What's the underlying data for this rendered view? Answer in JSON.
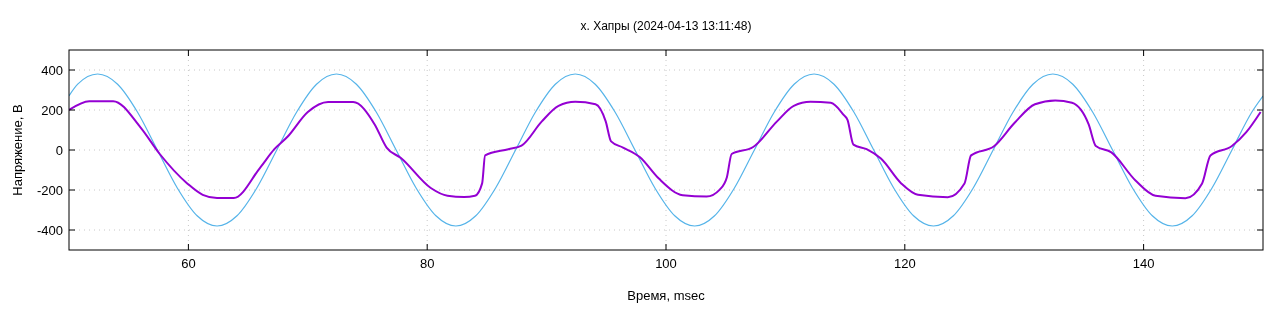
{
  "chart_data": {
    "type": "line",
    "title": "х. Хапры (2024-04-13 13:11:48)",
    "xlabel": "Время, msec",
    "ylabel": "Напряжение, В",
    "xlim": [
      50,
      150
    ],
    "ylim": [
      -500,
      500
    ],
    "xticks": [
      60,
      80,
      100,
      120,
      140
    ],
    "yticks": [
      -400,
      -200,
      0,
      200,
      400
    ],
    "grid": true,
    "marker": "none",
    "line_style": "solid",
    "series": [
      {
        "color": "#56b4e9",
        "x": [
          50,
          50.73,
          52.4,
          54.07,
          55.73,
          57.4,
          59.07,
          60.73,
          62.4,
          64.07,
          65.73,
          67.4,
          69.07,
          70.73,
          72.4,
          74.07,
          75.73,
          77.4,
          79.07,
          80.73,
          82.4,
          84.07,
          85.73,
          87.4,
          89.07,
          90.73,
          92.4,
          94.07,
          95.73,
          97.4,
          99.07,
          100.73,
          102.4,
          104.07,
          105.73,
          107.4,
          109.07,
          110.73,
          112.4,
          114.07,
          115.73,
          117.4,
          119.07,
          120.73,
          122.4,
          124.07,
          125.73,
          127.4,
          129.07,
          130.73,
          132.4,
          134.07,
          135.73,
          137.4,
          139.07,
          140.73,
          142.4,
          144.07,
          145.73,
          147.4,
          149.07,
          150
        ],
        "values": [
          271,
          329,
          380,
          329,
          190,
          0,
          -190,
          -329,
          -380,
          -329,
          -190,
          0,
          190,
          329,
          380,
          329,
          190,
          0,
          -190,
          -329,
          -380,
          -329,
          -190,
          0,
          190,
          329,
          380,
          329,
          190,
          0,
          -190,
          -329,
          -380,
          -329,
          -190,
          0,
          190,
          329,
          380,
          329,
          190,
          0,
          -190,
          -329,
          -380,
          -329,
          -190,
          0,
          190,
          329,
          380,
          329,
          190,
          0,
          -190,
          -329,
          -380,
          -329,
          -190,
          0,
          190,
          270
        ]
      },
      {
        "color": "#9400d3",
        "x": [
          50,
          51.7,
          53.7,
          56.0,
          57.6,
          59.9,
          61.2,
          62.4,
          63.8,
          66.0,
          67.2,
          68.3,
          70.0,
          71.7,
          73.8,
          75.6,
          76.6,
          77.8,
          80.3,
          81.7,
          83.1,
          84.0,
          84.6,
          84.85,
          86.8,
          87.9,
          89.6,
          91.0,
          92.4,
          94.1,
          94.95,
          95.4,
          96.4,
          97.8,
          99.4,
          101.4,
          103.4,
          104.5,
          105.1,
          105.5,
          107.3,
          109.3,
          110.7,
          112.1,
          113.8,
          114.9,
          115.2,
          115.7,
          116.8,
          118.0,
          119.7,
          121.1,
          123.6,
          125.0,
          125.55,
          127.5,
          129.2,
          130.9,
          132.6,
          134.0,
          135.4,
          136.0,
          137.3,
          139.3,
          141.0,
          143.5,
          144.9,
          145.6,
          147.4,
          148.6,
          149.8
        ],
        "values": [
          200,
          244,
          244,
          112,
          -20,
          -167,
          -224,
          -240,
          -240,
          -89,
          4,
          66,
          190,
          240,
          240,
          128,
          12,
          -40,
          -190,
          -229,
          -235,
          -229,
          -167,
          -27,
          4,
          22,
          143,
          221,
          241,
          229,
          143,
          43,
          12,
          -35,
          -143,
          -226,
          -233,
          -198,
          -136,
          -20,
          15,
          143,
          221,
          241,
          236,
          174,
          151,
          27,
          4,
          -43,
          -167,
          -224,
          -236,
          -167,
          -27,
          20,
          136,
          229,
          248,
          236,
          128,
          20,
          -12,
          -151,
          -229,
          -241,
          -167,
          -27,
          20,
          89,
          190
        ]
      }
    ]
  }
}
